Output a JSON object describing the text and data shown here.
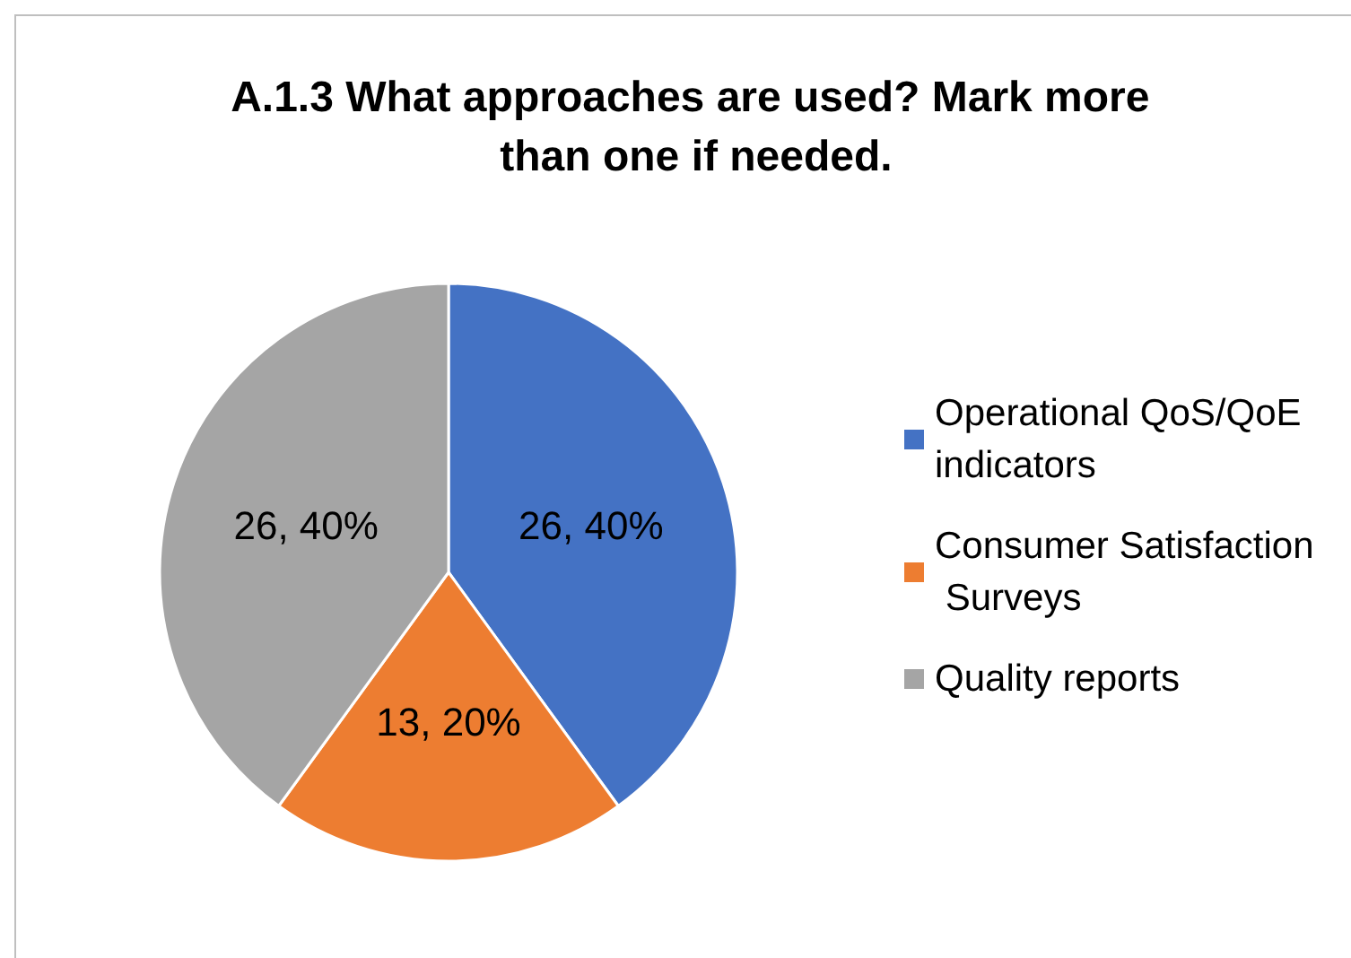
{
  "chart_data": {
    "type": "pie",
    "title": "A.1.3 What approaches are used? Mark more than one if needed.",
    "categories": [
      "Operational QoS/QoE indicators",
      "Consumer Satisfaction Surveys",
      "Quality reports"
    ],
    "values": [
      26,
      13,
      26
    ],
    "colors": [
      "#4472c4",
      "#ed7d31",
      "#a5a5a5"
    ],
    "value_labels": [
      "26, 40%",
      "13, 20%",
      "26, 40%"
    ],
    "legend": "right"
  }
}
